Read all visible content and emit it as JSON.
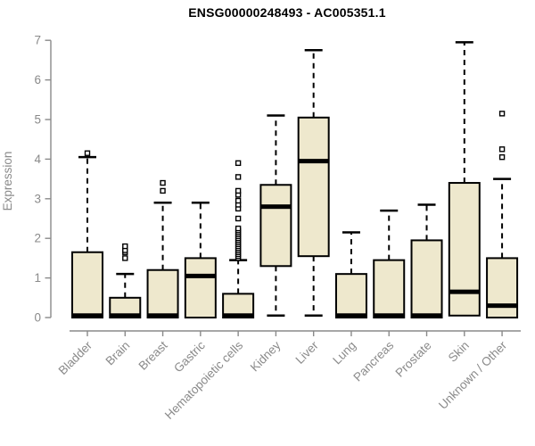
{
  "chart_data": {
    "type": "boxplot",
    "title": "ENSG00000248493 - AC005351.1",
    "ylabel": "Expression",
    "ylim": [
      0,
      7
    ],
    "yticks": [
      0,
      1,
      2,
      3,
      4,
      5,
      6,
      7
    ],
    "grid": false,
    "legend": false,
    "categories": [
      "Bladder",
      "Brain",
      "Breast",
      "Gastric",
      "Hematopoietic cells",
      "Kidney",
      "Liver",
      "Lung",
      "Pancreas",
      "Prostate",
      "Skin",
      "Unknown / Other"
    ],
    "series": [
      {
        "category": "Bladder",
        "whisker_low": 0,
        "q1": 0,
        "median": 0.05,
        "q3": 1.65,
        "whisker_high": 4.05,
        "outliers": [
          4.15
        ]
      },
      {
        "category": "Brain",
        "whisker_low": 0,
        "q1": 0,
        "median": 0.05,
        "q3": 0.5,
        "whisker_high": 1.1,
        "outliers": [
          1.5,
          1.65,
          1.7,
          1.8
        ]
      },
      {
        "category": "Breast",
        "whisker_low": 0,
        "q1": 0,
        "median": 0.05,
        "q3": 1.2,
        "whisker_high": 2.9,
        "outliers": [
          3.2,
          3.4
        ]
      },
      {
        "category": "Gastric",
        "whisker_low": 0,
        "q1": 0,
        "median": 1.05,
        "q3": 1.5,
        "whisker_high": 2.9,
        "outliers": []
      },
      {
        "category": "Hematopoietic cells",
        "whisker_low": 0,
        "q1": 0,
        "median": 0.05,
        "q3": 0.6,
        "whisker_high": 1.45,
        "outliers": [
          1.5,
          1.55,
          1.6,
          1.65,
          1.7,
          1.75,
          1.8,
          1.85,
          1.9,
          1.95,
          2.0,
          2.05,
          2.1,
          2.15,
          2.2,
          2.25,
          2.5,
          2.75,
          2.85,
          2.95,
          3.1,
          3.2,
          3.55,
          3.9
        ]
      },
      {
        "category": "Kidney",
        "whisker_low": 0.05,
        "q1": 1.3,
        "median": 2.8,
        "q3": 3.35,
        "whisker_high": 5.1,
        "outliers": []
      },
      {
        "category": "Liver",
        "whisker_low": 0.05,
        "q1": 1.55,
        "median": 3.95,
        "q3": 5.05,
        "whisker_high": 6.75,
        "outliers": []
      },
      {
        "category": "Lung",
        "whisker_low": 0,
        "q1": 0,
        "median": 0.05,
        "q3": 1.1,
        "whisker_high": 2.15,
        "outliers": []
      },
      {
        "category": "Pancreas",
        "whisker_low": 0,
        "q1": 0,
        "median": 0.05,
        "q3": 1.45,
        "whisker_high": 2.7,
        "outliers": []
      },
      {
        "category": "Prostate",
        "whisker_low": 0,
        "q1": 0,
        "median": 0.05,
        "q3": 1.95,
        "whisker_high": 2.85,
        "outliers": []
      },
      {
        "category": "Skin",
        "whisker_low": 0.05,
        "q1": 0.05,
        "median": 0.65,
        "q3": 3.4,
        "whisker_high": 6.95,
        "outliers": []
      },
      {
        "category": "Unknown / Other",
        "whisker_low": 0,
        "q1": 0,
        "median": 0.3,
        "q3": 1.5,
        "whisker_high": 3.5,
        "outliers": [
          4.05,
          4.25,
          5.15
        ]
      }
    ],
    "colors": {
      "box_fill": "#EEE8CD",
      "box_border": "#000000",
      "median": "#000000",
      "whisker": "#000000",
      "outlier_stroke": "#000000",
      "outlier_fill": "#FFFFFF",
      "axis": "#8A8A8A",
      "label": "#8A8A8A",
      "title": "#000000",
      "background": "#FFFFFF"
    }
  }
}
